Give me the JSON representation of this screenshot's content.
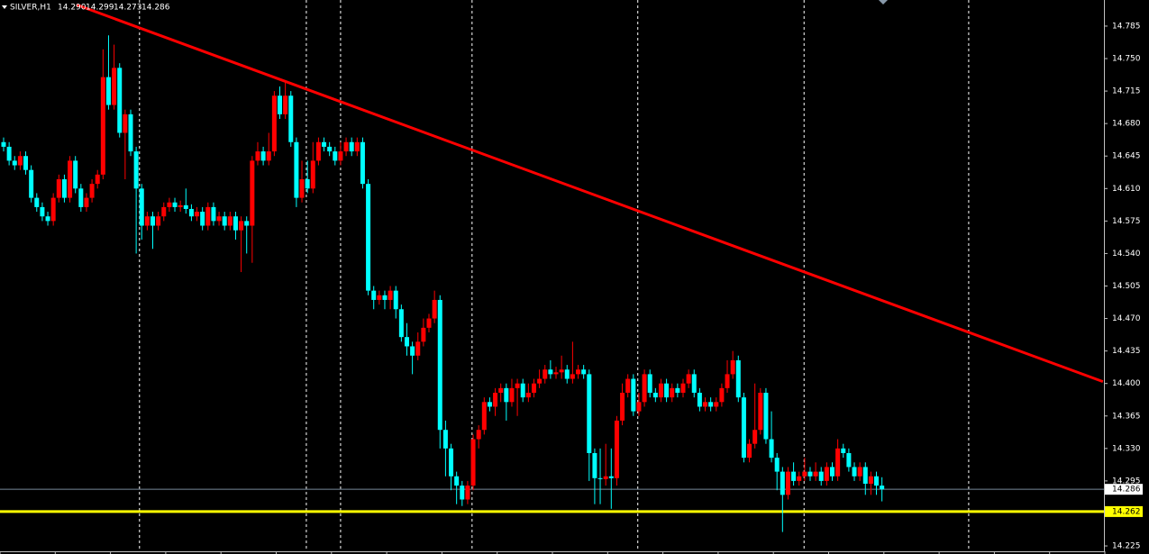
{
  "chart_data": {
    "type": "candlestick",
    "symbol": "SILVER,H1",
    "header_values": [
      "14.290",
      "14.299",
      "14.273",
      "14.286"
    ],
    "up_color": "#ff0000",
    "down_color": "#00ffff",
    "open": [
      14.66,
      14.655,
      14.64,
      14.635,
      14.645,
      14.63,
      14.6,
      14.59,
      14.58,
      14.575,
      14.6,
      14.62,
      14.6,
      14.64,
      14.61,
      14.59,
      14.6,
      14.615,
      14.625,
      14.73,
      14.7,
      14.74,
      14.67,
      14.69,
      14.65,
      14.61,
      14.57,
      14.58,
      14.57,
      14.58,
      14.59,
      14.595,
      14.59,
      14.592,
      14.588,
      14.58,
      14.585,
      14.57,
      14.59,
      14.575,
      14.58,
      14.57,
      14.58,
      14.565,
      14.575,
      14.57,
      14.64,
      14.65,
      14.64,
      14.65,
      14.71,
      14.69,
      14.71,
      14.66,
      14.6,
      14.62,
      14.61,
      14.64,
      14.66,
      14.655,
      14.65,
      14.64,
      14.65,
      14.66,
      14.65,
      14.66,
      14.615,
      14.5,
      14.49,
      14.495,
      14.49,
      14.5,
      14.48,
      14.45,
      14.44,
      14.43,
      14.445,
      14.46,
      14.47,
      14.49,
      14.35,
      14.33,
      14.3,
      14.29,
      14.275,
      14.29,
      14.34,
      14.35,
      14.38,
      14.375,
      14.39,
      14.395,
      14.38,
      14.395,
      14.4,
      14.385,
      14.39,
      14.4,
      14.405,
      14.415,
      14.41,
      14.412,
      14.415,
      14.405,
      14.41,
      14.415,
      14.41,
      14.325,
      14.298,
      14.297,
      14.3,
      14.298,
      14.36,
      14.39,
      14.405,
      14.37,
      14.38,
      14.41,
      14.39,
      14.385,
      14.4,
      14.385,
      14.395,
      14.39,
      14.4,
      14.41,
      14.39,
      14.375,
      14.38,
      14.375,
      14.38,
      14.395,
      14.41,
      14.425,
      14.385,
      14.32,
      14.335,
      14.35,
      14.39,
      14.34,
      14.32,
      14.305,
      14.28,
      14.305,
      14.295,
      14.3,
      14.305,
      14.3,
      14.305,
      14.295,
      14.31,
      14.3,
      14.33,
      14.325,
      14.31,
      14.3,
      14.31,
      14.292,
      14.3,
      14.29
    ],
    "high": [
      14.665,
      14.66,
      14.645,
      14.65,
      14.65,
      14.635,
      14.605,
      14.595,
      14.585,
      14.605,
      14.625,
      14.625,
      14.645,
      14.645,
      14.615,
      14.605,
      14.62,
      14.63,
      14.76,
      14.775,
      14.765,
      14.745,
      14.695,
      14.695,
      14.655,
      14.615,
      14.585,
      14.585,
      14.585,
      14.595,
      14.6,
      14.6,
      14.597,
      14.61,
      14.593,
      14.59,
      14.59,
      14.595,
      14.595,
      14.585,
      14.585,
      14.585,
      14.585,
      14.58,
      14.58,
      14.645,
      14.66,
      14.655,
      14.67,
      14.715,
      14.72,
      14.725,
      14.715,
      14.665,
      14.64,
      14.64,
      14.66,
      14.665,
      14.665,
      14.66,
      14.655,
      14.66,
      14.665,
      14.665,
      14.665,
      14.665,
      14.62,
      14.505,
      14.5,
      14.5,
      14.505,
      14.505,
      14.485,
      14.465,
      14.445,
      14.455,
      14.47,
      14.475,
      14.5,
      14.495,
      14.36,
      14.335,
      14.305,
      14.295,
      14.295,
      14.345,
      14.355,
      14.385,
      14.385,
      14.395,
      14.4,
      14.4,
      14.405,
      14.405,
      14.405,
      14.4,
      14.405,
      14.415,
      14.42,
      14.425,
      14.418,
      14.43,
      14.42,
      14.445,
      14.42,
      14.42,
      14.415,
      14.33,
      14.33,
      14.335,
      14.33,
      14.365,
      14.4,
      14.41,
      14.41,
      14.39,
      14.415,
      14.415,
      14.395,
      14.405,
      14.405,
      14.4,
      14.4,
      14.405,
      14.415,
      14.415,
      14.395,
      14.385,
      14.385,
      14.385,
      14.4,
      14.425,
      14.435,
      14.43,
      14.39,
      14.34,
      14.4,
      14.395,
      14.395,
      14.37,
      14.325,
      14.31,
      14.31,
      14.315,
      14.305,
      14.32,
      14.31,
      14.315,
      14.31,
      14.315,
      14.315,
      14.34,
      14.335,
      14.33,
      14.315,
      14.315,
      14.315,
      14.305,
      14.305,
      14.299
    ],
    "low": [
      14.65,
      14.635,
      14.63,
      14.63,
      14.625,
      14.595,
      14.585,
      14.575,
      14.57,
      14.57,
      14.595,
      14.595,
      14.595,
      14.605,
      14.585,
      14.585,
      14.595,
      14.61,
      14.62,
      14.695,
      14.695,
      14.665,
      14.62,
      14.645,
      14.54,
      14.555,
      14.565,
      14.545,
      14.565,
      14.575,
      14.585,
      14.585,
      14.585,
      14.583,
      14.575,
      14.575,
      14.565,
      14.565,
      14.57,
      14.57,
      14.565,
      14.565,
      14.555,
      14.52,
      14.54,
      14.53,
      14.635,
      14.635,
      14.635,
      14.645,
      14.685,
      14.685,
      14.655,
      14.59,
      14.595,
      14.605,
      14.605,
      14.635,
      14.65,
      14.645,
      14.635,
      14.635,
      14.645,
      14.645,
      14.645,
      14.61,
      14.495,
      14.48,
      14.485,
      14.48,
      14.48,
      14.47,
      14.445,
      14.43,
      14.41,
      14.425,
      14.44,
      14.455,
      14.465,
      14.33,
      14.3,
      14.285,
      14.27,
      14.268,
      14.27,
      14.285,
      14.33,
      14.345,
      14.37,
      14.365,
      14.38,
      14.36,
      14.375,
      14.365,
      14.38,
      14.38,
      14.385,
      14.395,
      14.4,
      14.405,
      14.405,
      14.405,
      14.4,
      14.4,
      14.405,
      14.405,
      14.295,
      14.27,
      14.27,
      14.29,
      14.265,
      14.29,
      14.355,
      14.385,
      14.365,
      14.365,
      14.375,
      14.385,
      14.38,
      14.38,
      14.38,
      14.38,
      14.385,
      14.385,
      14.395,
      14.385,
      14.37,
      14.37,
      14.37,
      14.37,
      14.375,
      14.39,
      14.405,
      14.38,
      14.315,
      14.315,
      14.33,
      14.345,
      14.335,
      14.315,
      14.285,
      14.24,
      14.275,
      14.29,
      14.29,
      14.295,
      14.295,
      14.295,
      14.29,
      14.29,
      14.295,
      14.295,
      14.32,
      14.305,
      14.295,
      14.295,
      14.28,
      14.28,
      14.28,
      14.273
    ],
    "close": [
      14.655,
      14.64,
      14.635,
      14.645,
      14.63,
      14.6,
      14.59,
      14.58,
      14.575,
      14.6,
      14.62,
      14.6,
      14.64,
      14.61,
      14.59,
      14.6,
      14.615,
      14.625,
      14.73,
      14.7,
      14.74,
      14.67,
      14.69,
      14.65,
      14.61,
      14.57,
      14.58,
      14.57,
      14.58,
      14.59,
      14.595,
      14.59,
      14.592,
      14.588,
      14.58,
      14.585,
      14.57,
      14.59,
      14.575,
      14.58,
      14.57,
      14.58,
      14.565,
      14.575,
      14.57,
      14.64,
      14.65,
      14.64,
      14.65,
      14.71,
      14.69,
      14.71,
      14.66,
      14.6,
      14.62,
      14.61,
      14.64,
      14.66,
      14.655,
      14.65,
      14.64,
      14.65,
      14.66,
      14.65,
      14.66,
      14.615,
      14.5,
      14.49,
      14.495,
      14.49,
      14.5,
      14.48,
      14.45,
      14.44,
      14.43,
      14.445,
      14.46,
      14.47,
      14.49,
      14.35,
      14.33,
      14.3,
      14.29,
      14.275,
      14.29,
      14.34,
      14.35,
      14.38,
      14.375,
      14.39,
      14.395,
      14.38,
      14.395,
      14.4,
      14.385,
      14.39,
      14.4,
      14.405,
      14.415,
      14.41,
      14.412,
      14.415,
      14.405,
      14.41,
      14.415,
      14.41,
      14.325,
      14.298,
      14.297,
      14.3,
      14.298,
      14.36,
      14.39,
      14.405,
      14.37,
      14.38,
      14.41,
      14.39,
      14.385,
      14.4,
      14.385,
      14.395,
      14.39,
      14.4,
      14.41,
      14.39,
      14.375,
      14.38,
      14.375,
      14.38,
      14.395,
      14.41,
      14.425,
      14.385,
      14.32,
      14.335,
      14.35,
      14.39,
      14.34,
      14.32,
      14.305,
      14.28,
      14.305,
      14.295,
      14.3,
      14.305,
      14.3,
      14.305,
      14.295,
      14.31,
      14.3,
      14.33,
      14.325,
      14.31,
      14.3,
      14.31,
      14.292,
      14.3,
      14.29,
      14.286
    ],
    "ylim": [
      14.2163,
      14.8131
    ],
    "yticks": [
      14.785,
      {
        "value": 14.75,
        "label": "14.750"
      },
      14.715,
      {
        "value": 14.68,
        "label": "14.680"
      },
      14.645,
      {
        "value": 14.61,
        "label": "14.610"
      },
      14.575,
      {
        "value": 14.54,
        "label": "14.540"
      },
      14.505,
      {
        "value": 14.47,
        "label": "14.470"
      },
      14.435,
      {
        "value": 14.4,
        "label": "14.400"
      },
      14.365,
      {
        "value": 14.33,
        "label": "14.330"
      },
      14.295,
      14.225
    ],
    "separators": [
      24.6,
      54.8,
      61,
      84.8,
      114.8,
      144.9,
      174.7
    ],
    "trendline": {
      "x": [
        13.2,
        199
      ],
      "y": [
        14.808,
        14.402
      ],
      "color": "#ff0000"
    },
    "price_line": 14.286,
    "level_line": {
      "value": 14.262,
      "color": "#ffff00"
    }
  }
}
